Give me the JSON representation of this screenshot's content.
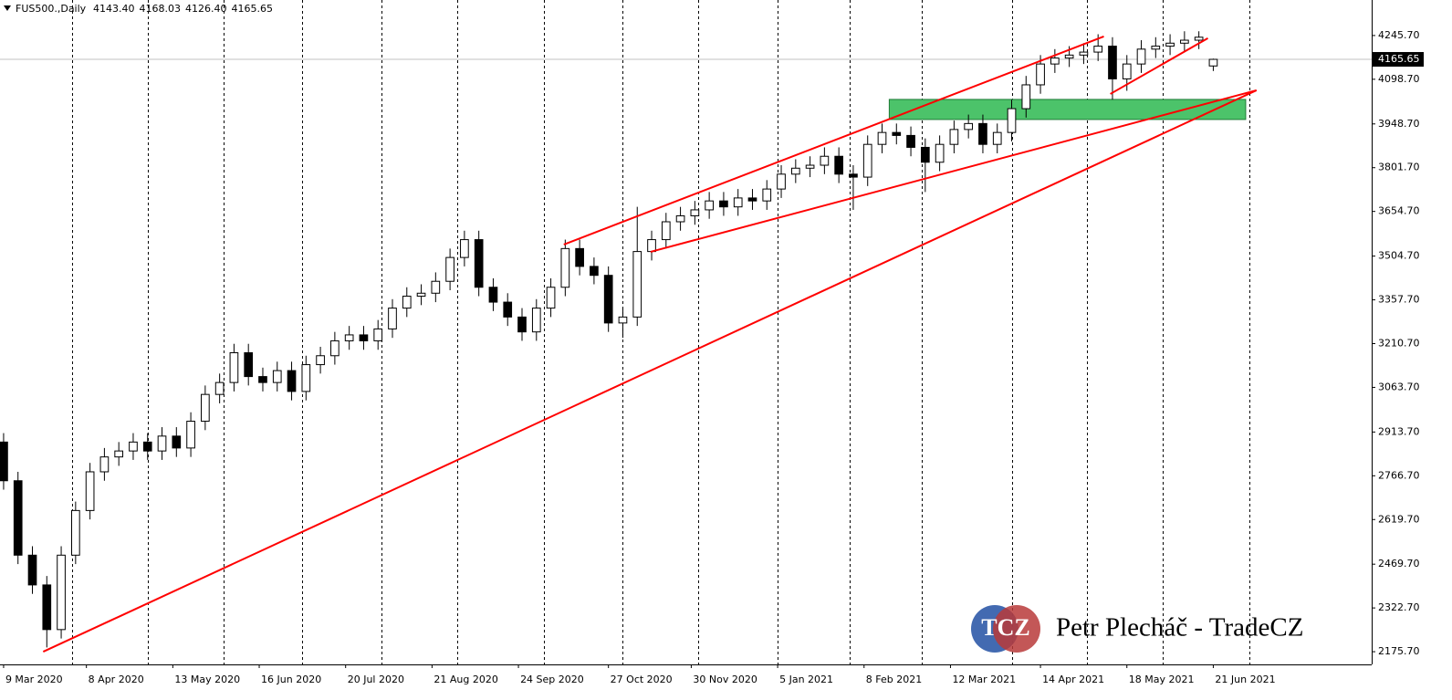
{
  "chart_data": {
    "type": "candlestick",
    "title": "FUS500.,Daily",
    "header_values": [
      "4143.40",
      "4168.03",
      "4126.40",
      "4165.65"
    ],
    "x": [
      0,
      4,
      8,
      12,
      16,
      20,
      24,
      28,
      32,
      36,
      40,
      44,
      48,
      52,
      56,
      60,
      64,
      68,
      72,
      76,
      80,
      84,
      88,
      92,
      96,
      100,
      104,
      108,
      112,
      116,
      120,
      124,
      128,
      132,
      136,
      140,
      144,
      148,
      152,
      156,
      160,
      164,
      168,
      172,
      176,
      180,
      184,
      188,
      192,
      196,
      200,
      204,
      208,
      212,
      216,
      220,
      224,
      228,
      232,
      236,
      240,
      244,
      248,
      252,
      256,
      260,
      264,
      268,
      272,
      276,
      280,
      284,
      288,
      292,
      296,
      300,
      304,
      308,
      312,
      316,
      320,
      324,
      328,
      332,
      336
    ],
    "open": [
      2880,
      2750,
      2500,
      2400,
      2250,
      2500,
      2650,
      2780,
      2830,
      2850,
      2880,
      2850,
      2900,
      2860,
      2950,
      3040,
      3080,
      3180,
      3100,
      3080,
      3120,
      3050,
      3140,
      3170,
      3220,
      3240,
      3220,
      3260,
      3330,
      3370,
      3380,
      3420,
      3500,
      3560,
      3400,
      3350,
      3300,
      3250,
      3330,
      3400,
      3530,
      3470,
      3440,
      3280,
      3300,
      3520,
      3560,
      3620,
      3640,
      3660,
      3690,
      3670,
      3700,
      3690,
      3730,
      3780,
      3800,
      3810,
      3840,
      3780,
      3770,
      3880,
      3920,
      3910,
      3870,
      3820,
      3880,
      3930,
      3950,
      3880,
      3920,
      4000,
      4080,
      4150,
      4170,
      4180,
      4190,
      4210,
      4100,
      4150,
      4200,
      4210,
      4220,
      4230,
      4143.4
    ],
    "high": [
      2910,
      2780,
      2530,
      2430,
      2530,
      2680,
      2810,
      2860,
      2880,
      2910,
      2910,
      2930,
      2930,
      2980,
      3070,
      3110,
      3210,
      3210,
      3130,
      3150,
      3150,
      3170,
      3200,
      3250,
      3270,
      3270,
      3290,
      3360,
      3400,
      3410,
      3450,
      3530,
      3590,
      3590,
      3430,
      3380,
      3330,
      3360,
      3430,
      3560,
      3560,
      3500,
      3470,
      3330,
      3670,
      3590,
      3650,
      3670,
      3690,
      3720,
      3720,
      3730,
      3730,
      3760,
      3810,
      3830,
      3840,
      3870,
      3870,
      3810,
      3910,
      3950,
      3950,
      3940,
      3900,
      3910,
      3960,
      3980,
      3980,
      3950,
      4030,
      4110,
      4180,
      4200,
      4210,
      4220,
      4250,
      4240,
      4180,
      4230,
      4240,
      4250,
      4260,
      4260,
      4168.03
    ],
    "low": [
      2720,
      2470,
      2370,
      2190,
      2220,
      2470,
      2620,
      2750,
      2800,
      2820,
      2820,
      2820,
      2830,
      2830,
      2920,
      3010,
      3050,
      3070,
      3050,
      3050,
      3020,
      3020,
      3110,
      3140,
      3190,
      3190,
      3190,
      3230,
      3300,
      3340,
      3350,
      3390,
      3470,
      3370,
      3320,
      3270,
      3220,
      3220,
      3300,
      3370,
      3440,
      3410,
      3250,
      3230,
      3270,
      3490,
      3530,
      3590,
      3610,
      3630,
      3640,
      3640,
      3660,
      3660,
      3700,
      3750,
      3770,
      3780,
      3750,
      3660,
      3740,
      3850,
      3880,
      3840,
      3720,
      3790,
      3850,
      3900,
      3850,
      3850,
      3890,
      3970,
      4050,
      4120,
      4140,
      4150,
      4160,
      4030,
      4060,
      4120,
      4170,
      4180,
      4190,
      4200,
      4126.4
    ],
    "close": [
      2750,
      2500,
      2400,
      2250,
      2500,
      2650,
      2780,
      2830,
      2850,
      2880,
      2850,
      2900,
      2860,
      2950,
      3040,
      3080,
      3180,
      3100,
      3080,
      3120,
      3050,
      3140,
      3170,
      3220,
      3240,
      3220,
      3260,
      3330,
      3370,
      3380,
      3420,
      3500,
      3560,
      3400,
      3350,
      3300,
      3250,
      3330,
      3400,
      3530,
      3470,
      3440,
      3280,
      3300,
      3520,
      3560,
      3620,
      3640,
      3660,
      3690,
      3670,
      3700,
      3690,
      3730,
      3780,
      3800,
      3810,
      3840,
      3780,
      3770,
      3880,
      3920,
      3910,
      3870,
      3820,
      3880,
      3930,
      3950,
      3880,
      3920,
      4000,
      4080,
      4150,
      4170,
      4180,
      4190,
      4210,
      4100,
      4150,
      4200,
      4210,
      4220,
      4230,
      4240,
      4165.65
    ],
    "colors": {
      "up": "#ffffff",
      "down": "#000000",
      "outline": "#000000"
    },
    "xlim": [
      -1,
      380
    ],
    "ylim": [
      2133,
      4365
    ],
    "xticks": [
      {
        "value": 0,
        "label": "9 Mar 2020"
      },
      {
        "value": 23,
        "label": "8 Apr 2020"
      },
      {
        "value": 47,
        "label": "13 May 2020"
      },
      {
        "value": 71,
        "label": "16 Jun 2020"
      },
      {
        "value": 95,
        "label": "20 Jul 2020"
      },
      {
        "value": 119,
        "label": "21 Aug 2020"
      },
      {
        "value": 143,
        "label": "24 Sep 2020"
      },
      {
        "value": 168,
        "label": "27 Oct 2020"
      },
      {
        "value": 191,
        "label": "30 Nov 2020"
      },
      {
        "value": 215,
        "label": "5 Jan 2021"
      },
      {
        "value": 239,
        "label": "8 Feb 2021"
      },
      {
        "value": 263,
        "label": "12 Mar 2021"
      },
      {
        "value": 288,
        "label": "14 Apr 2021"
      },
      {
        "value": 312,
        "label": "18 May 2021"
      },
      {
        "value": 336,
        "label": "21 Jun 2021"
      }
    ],
    "xgrid": [
      19,
      40,
      61,
      83,
      105,
      126,
      150,
      172,
      193,
      215,
      235,
      255,
      280,
      301,
      322,
      346
    ],
    "grid": true,
    "yticks": [
      {
        "value": 4245.7,
        "label": "4245.70"
      },
      {
        "value": 4098.7,
        "label": "4098.70"
      },
      {
        "value": 3948.7,
        "label": "3948.70"
      },
      {
        "value": 3801.7,
        "label": "3801.70"
      },
      {
        "value": 3654.7,
        "label": "3654.70"
      },
      {
        "value": 3504.7,
        "label": "3504.70"
      },
      {
        "value": 3357.7,
        "label": "3357.70"
      },
      {
        "value": 3210.7,
        "label": "3210.70"
      },
      {
        "value": 3063.7,
        "label": "3063.70"
      },
      {
        "value": 2913.7,
        "label": "2913.70"
      },
      {
        "value": 2766.7,
        "label": "2766.70"
      },
      {
        "value": 2619.7,
        "label": "2619.70"
      },
      {
        "value": 2469.7,
        "label": "2469.70"
      },
      {
        "value": 2322.7,
        "label": "2322.70"
      },
      {
        "value": 2175.7,
        "label": "2175.70"
      }
    ],
    "current_price": {
      "value": 4165.65,
      "label": "4165.65"
    },
    "lines": [
      {
        "color": "#ff0000",
        "x": [
          11,
          348
        ],
        "y": [
          2175.7,
          4061.7
        ]
      },
      {
        "color": "#ff0000",
        "x": [
          155.6,
          305.6
        ],
        "y": [
          3543.5,
          4242.6
        ]
      },
      {
        "color": "#ff0000",
        "x": [
          179.7,
          348
        ],
        "y": [
          3518.9,
          4061.7
        ]
      },
      {
        "color": "#ff0000",
        "x": [
          307.4,
          334.5
        ],
        "y": [
          4049.4,
          4236.5
        ]
      }
    ],
    "zone": {
      "color": "#4cc36a",
      "x": [
        246,
        345
      ],
      "y": [
        3963.6,
        4031
      ]
    },
    "watermark": {
      "logo": "TCZ",
      "text": "Petr Plecháč - TradeCZ"
    }
  }
}
